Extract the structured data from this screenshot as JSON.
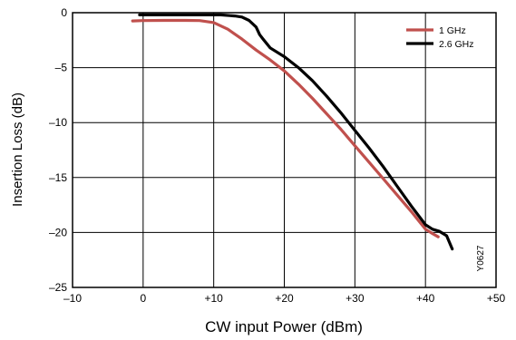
{
  "chart_data": {
    "type": "line",
    "xlabel": "CW input Power (dBm)",
    "ylabel": "Insertion Loss (dB)",
    "xlim": [
      -10,
      50
    ],
    "ylim": [
      -25,
      0
    ],
    "x_ticks": [
      -10,
      0,
      10,
      20,
      30,
      40,
      50
    ],
    "x_tick_labels": [
      "–10",
      "0",
      "+10",
      "+20",
      "+30",
      "+40",
      "+50"
    ],
    "y_ticks": [
      0,
      -5,
      -10,
      -15,
      -20,
      -25
    ],
    "y_tick_labels": [
      "0",
      "–5",
      "–10",
      "–15",
      "–20",
      "–25"
    ],
    "grid": true,
    "legend_position": "top-right",
    "series": [
      {
        "name": "1 GHz",
        "color": "#c0504d",
        "x": [
          -1.5,
          0,
          3,
          6,
          8,
          10,
          12,
          14,
          16,
          18,
          20,
          22,
          24,
          26,
          28,
          30,
          32,
          34,
          36,
          38,
          39,
          40,
          41,
          41.8
        ],
        "y": [
          -0.75,
          -0.72,
          -0.7,
          -0.7,
          -0.72,
          -0.9,
          -1.5,
          -2.4,
          -3.4,
          -4.3,
          -5.3,
          -6.5,
          -7.8,
          -9.2,
          -10.6,
          -12.1,
          -13.6,
          -15.1,
          -16.6,
          -18.1,
          -18.9,
          -19.7,
          -20.1,
          -20.4
        ]
      },
      {
        "name": "2.6 GHz",
        "color": "#000000",
        "x": [
          -0.5,
          3,
          6,
          9,
          11,
          13,
          14,
          15,
          16,
          16.5,
          17,
          18,
          20,
          22,
          24,
          26,
          28,
          30,
          32,
          34,
          36,
          38,
          40,
          41,
          42,
          43,
          43.8
        ],
        "y": [
          -0.2,
          -0.2,
          -0.2,
          -0.2,
          -0.2,
          -0.3,
          -0.4,
          -0.7,
          -1.3,
          -2.0,
          -2.4,
          -3.2,
          -4.0,
          -5.0,
          -6.2,
          -7.6,
          -9.1,
          -10.7,
          -12.3,
          -14.0,
          -15.8,
          -17.6,
          -19.3,
          -19.7,
          -19.9,
          -20.3,
          -21.5
        ]
      }
    ],
    "annotations": [
      "Y0627"
    ]
  }
}
